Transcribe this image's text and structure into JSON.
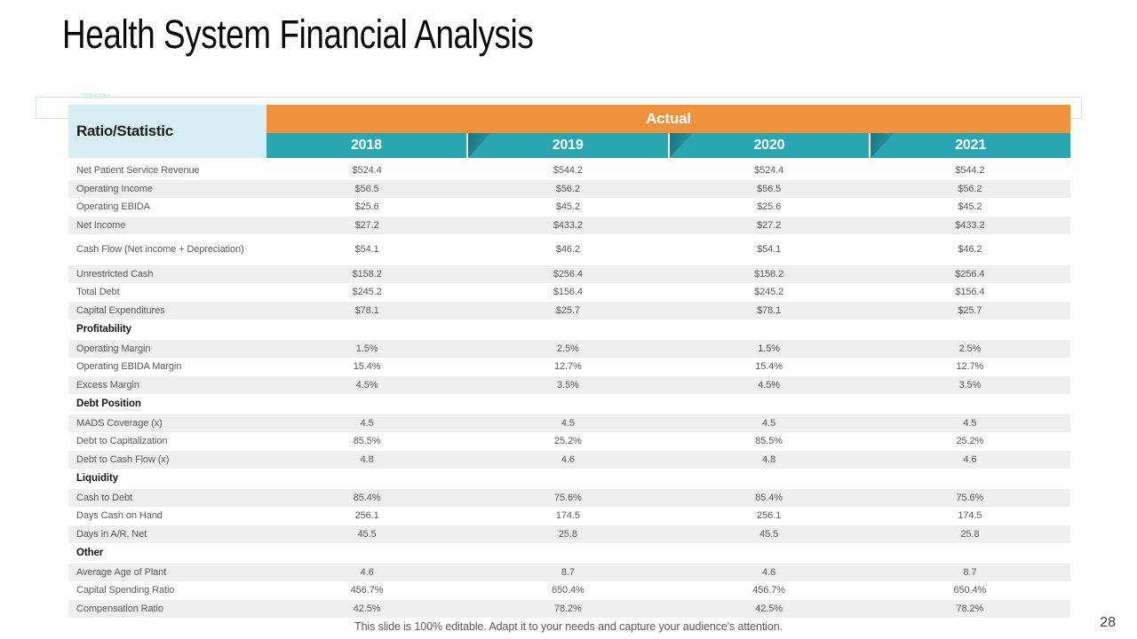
{
  "slide": {
    "title": "Health System Financial Analysis",
    "footer_note": "This slide is 100% editable. Adapt it to your needs and capture your audience's attention.",
    "page_number": "28",
    "decor_chevrons": ">>>>>>"
  },
  "colors": {
    "accent_orange": "#F0913B",
    "accent_teal": "#2AA6B0",
    "corner_cyan": "#D7EFF4",
    "row_shade": "#EFEFEF",
    "body_text": "#595959"
  },
  "table": {
    "corner_label": "Ratio/Statistic",
    "group_header": "Actual",
    "years": [
      "2018",
      "2019",
      "2020",
      "2021"
    ],
    "rows": [
      {
        "type": "data",
        "label": "Net Patient Service Revenue",
        "values": [
          "$524.4",
          "$544.2",
          "$524.4",
          "$544.2"
        ],
        "shaded": false
      },
      {
        "type": "data",
        "label": "Operating Income",
        "values": [
          "$56.5",
          "$56.2",
          "$56.5",
          "$56.2"
        ],
        "shaded": true
      },
      {
        "type": "data",
        "label": "Operating EBIDA",
        "values": [
          "$25.6",
          "$45.2",
          "$25.6",
          "$45.2"
        ],
        "shaded": false
      },
      {
        "type": "data",
        "label": "Net Income",
        "values": [
          "$27.2",
          "$433.2",
          "$27.2",
          "$433.2"
        ],
        "shaded": true
      },
      {
        "type": "data",
        "label": "Cash Flow (Net income + Depreciation)",
        "values": [
          "$54.1",
          "$46.2",
          "$54.1",
          "$46.2"
        ],
        "shaded": false,
        "tall": true
      },
      {
        "type": "data",
        "label": "Unrestricted Cash",
        "values": [
          "$158.2",
          "$256.4",
          "$158.2",
          "$256.4"
        ],
        "shaded": true
      },
      {
        "type": "data",
        "label": "Total Debt",
        "values": [
          "$245.2",
          "$156.4",
          "$245.2",
          "$156.4"
        ],
        "shaded": false
      },
      {
        "type": "data",
        "label": "Capital Expenditures",
        "values": [
          "$78.1",
          "$25.7",
          "$78.1",
          "$25.7"
        ],
        "shaded": true
      },
      {
        "type": "section",
        "label": "Profitability",
        "values": [],
        "shaded": false
      },
      {
        "type": "data",
        "label": "Operating Margin",
        "values": [
          "1.5%",
          "2.5%",
          "1.5%",
          "2.5%"
        ],
        "shaded": true
      },
      {
        "type": "data",
        "label": "Operating EBIDA Margin",
        "values": [
          "15.4%",
          "12.7%",
          "15.4%",
          "12.7%"
        ],
        "shaded": false
      },
      {
        "type": "data",
        "label": "Excess Margin",
        "values": [
          "4.5%",
          "3.5%",
          "4.5%",
          "3.5%"
        ],
        "shaded": true
      },
      {
        "type": "section",
        "label": "Debt Position",
        "values": [],
        "shaded": false
      },
      {
        "type": "data",
        "label": "MADS Coverage (x)",
        "values": [
          "4.5",
          "4.5",
          "4.5",
          "4.5"
        ],
        "shaded": true
      },
      {
        "type": "data",
        "label": "Debt to Capitalization",
        "values": [
          "85.5%",
          "25.2%",
          "85.5%",
          "25.2%"
        ],
        "shaded": false
      },
      {
        "type": "data",
        "label": "Debt to Cash Flow (x)",
        "values": [
          "4.8",
          "4.6",
          "4.8",
          "4.6"
        ],
        "shaded": true
      },
      {
        "type": "section",
        "label": "Liquidity",
        "values": [],
        "shaded": false
      },
      {
        "type": "data",
        "label": "Cash to Debt",
        "values": [
          "85.4%",
          "75.6%",
          "85.4%",
          "75.6%"
        ],
        "shaded": true
      },
      {
        "type": "data",
        "label": "Days Cash on Hand",
        "values": [
          "256.1",
          "174.5",
          "256.1",
          "174.5"
        ],
        "shaded": false
      },
      {
        "type": "data",
        "label": "Days in A/R, Net",
        "values": [
          "45.5",
          "25.8",
          "45.5",
          "25.8"
        ],
        "shaded": true
      },
      {
        "type": "section",
        "label": "Other",
        "values": [],
        "shaded": false
      },
      {
        "type": "data",
        "label": "Average Age of Plant",
        "values": [
          "4.6",
          "8.7",
          "4.6",
          "8.7"
        ],
        "shaded": true
      },
      {
        "type": "data",
        "label": "Capital Spending Ratio",
        "values": [
          "456.7%",
          "650.4%",
          "456.7%",
          "650.4%"
        ],
        "shaded": false
      },
      {
        "type": "data",
        "label": "Compensation Ratio",
        "values": [
          "42.5%",
          "78.2%",
          "42.5%",
          "78.2%"
        ],
        "shaded": true
      }
    ]
  }
}
